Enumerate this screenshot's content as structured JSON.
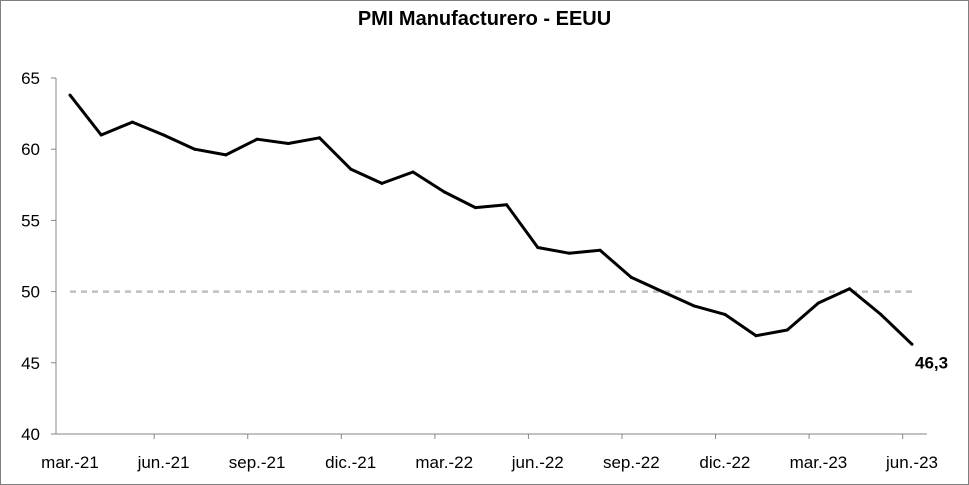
{
  "chart_data": {
    "type": "line",
    "title": "PMI Manufacturero - EEUU",
    "xlabel": "",
    "ylabel": "",
    "ylim": [
      40,
      65
    ],
    "yticks": [
      40,
      45,
      50,
      55,
      60,
      65
    ],
    "x_tick_labels": [
      "mar.-21",
      "jun.-21",
      "sep.-21",
      "dic.-21",
      "mar.-22",
      "jun.-22",
      "sep.-22",
      "dic.-22",
      "mar.-23",
      "jun.-23"
    ],
    "x": [
      "mar.-21",
      "abr.-21",
      "may.-21",
      "jun.-21",
      "jul.-21",
      "ago.-21",
      "sep.-21",
      "oct.-21",
      "nov.-21",
      "dic.-21",
      "ene.-22",
      "feb.-22",
      "mar.-22",
      "abr.-22",
      "may.-22",
      "jun.-22",
      "jul.-22",
      "ago.-22",
      "sep.-22",
      "oct.-22",
      "nov.-22",
      "dic.-22",
      "ene.-23",
      "feb.-23",
      "mar.-23",
      "abr.-23",
      "may.-23",
      "jun.-23"
    ],
    "series": [
      {
        "values": [
          63.8,
          61.0,
          61.9,
          61.0,
          60.0,
          59.6,
          60.7,
          60.4,
          60.8,
          58.6,
          57.6,
          58.4,
          57.0,
          55.9,
          56.1,
          53.1,
          52.7,
          52.9,
          51.0,
          50.0,
          49.0,
          48.4,
          46.9,
          47.3,
          49.2,
          50.2,
          48.4,
          46.3
        ],
        "color": "#000000"
      }
    ],
    "reference_line": {
      "value": 50,
      "style": "dashed",
      "color": "#bfbfbf"
    },
    "last_value_label": "46,3",
    "grid": false,
    "legend": "none"
  }
}
